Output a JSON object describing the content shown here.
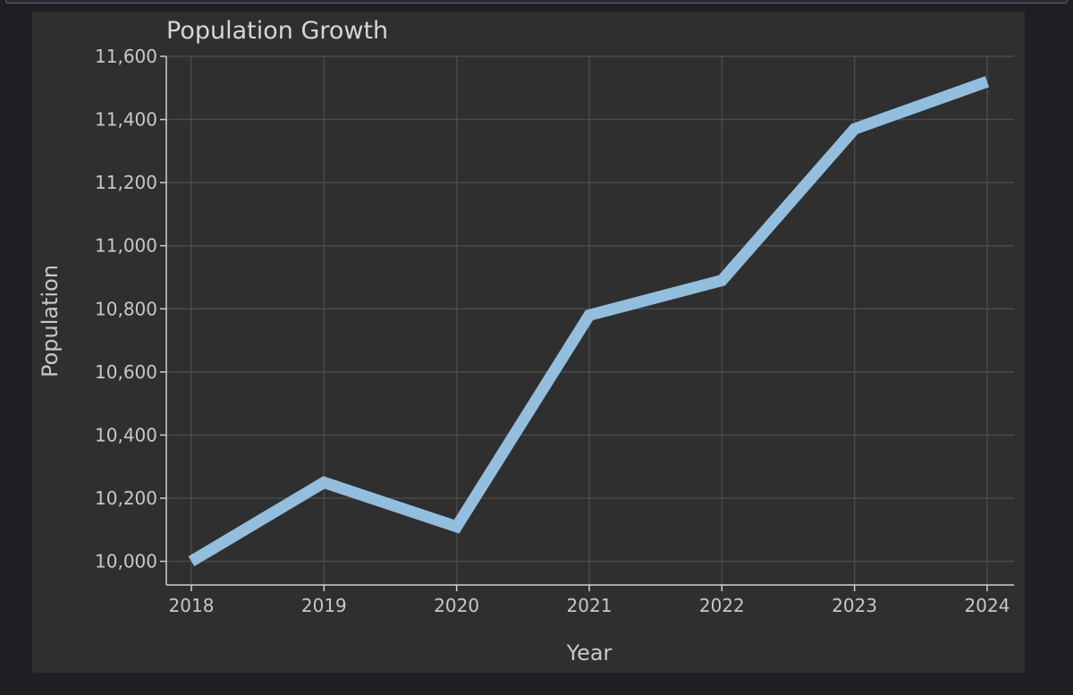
{
  "chart_data": {
    "type": "line",
    "title": "Population Growth",
    "xlabel": "Year",
    "ylabel": "Population",
    "categories": [
      "2018",
      "2019",
      "2020",
      "2021",
      "2022",
      "2023",
      "2024"
    ],
    "series": [
      {
        "name": "Population",
        "values": [
          10000,
          10250,
          10110,
          10780,
          10890,
          11370,
          11520
        ],
        "color": "#93bede"
      }
    ],
    "ylim": [
      9925,
      11600
    ],
    "yticks": [
      10000,
      10200,
      10400,
      10600,
      10800,
      11000,
      11200,
      11400,
      11600
    ],
    "ytick_labels": [
      "10,000",
      "10,200",
      "10,400",
      "10,600",
      "10,800",
      "11,000",
      "11,200",
      "11,400",
      "11,600"
    ],
    "grid": true,
    "legend": "none"
  },
  "colors": {
    "page_background": "#1e1f22",
    "panel_background": "#2f2f2f",
    "grid": "#4a4a4a",
    "text": "#c8c8c8"
  }
}
